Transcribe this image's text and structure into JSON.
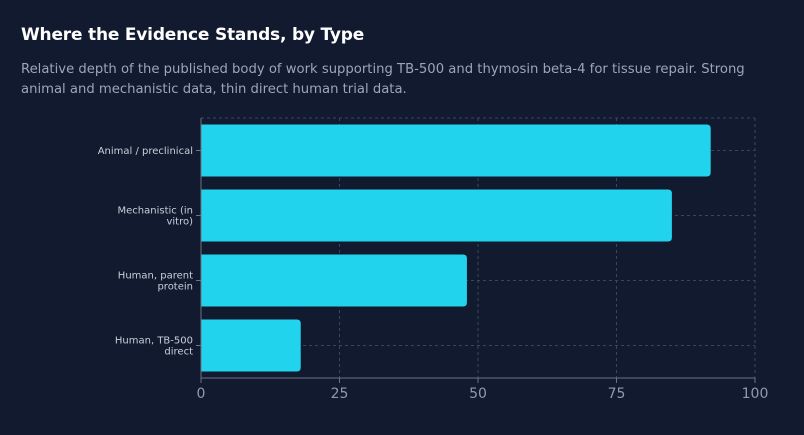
{
  "title": "Where the Evidence Stands, by Type",
  "subtitle": "Relative depth of the published body of work supporting TB-500 and thymosin beta-4 for tissue repair. Strong animal and mechanistic data, thin direct human trial data.",
  "colors": {
    "background": "#111a2e",
    "bar": "#22d3ee",
    "grid": "#3a4560",
    "axis": "#6b7487"
  },
  "chart_data": {
    "type": "bar",
    "orientation": "horizontal",
    "categories": [
      [
        "Animal / preclinical"
      ],
      [
        "Mechanistic (in",
        "vitro)"
      ],
      [
        "Human, parent",
        "protein"
      ],
      [
        "Human, TB-500",
        "direct"
      ]
    ],
    "values": [
      92,
      85,
      48,
      18
    ],
    "xlim": [
      0,
      100
    ],
    "xticks": [
      "0",
      "25",
      "50",
      "75",
      "100"
    ],
    "xtick_values": [
      0,
      25,
      50,
      75,
      100
    ],
    "grid": true,
    "legend": "none"
  }
}
